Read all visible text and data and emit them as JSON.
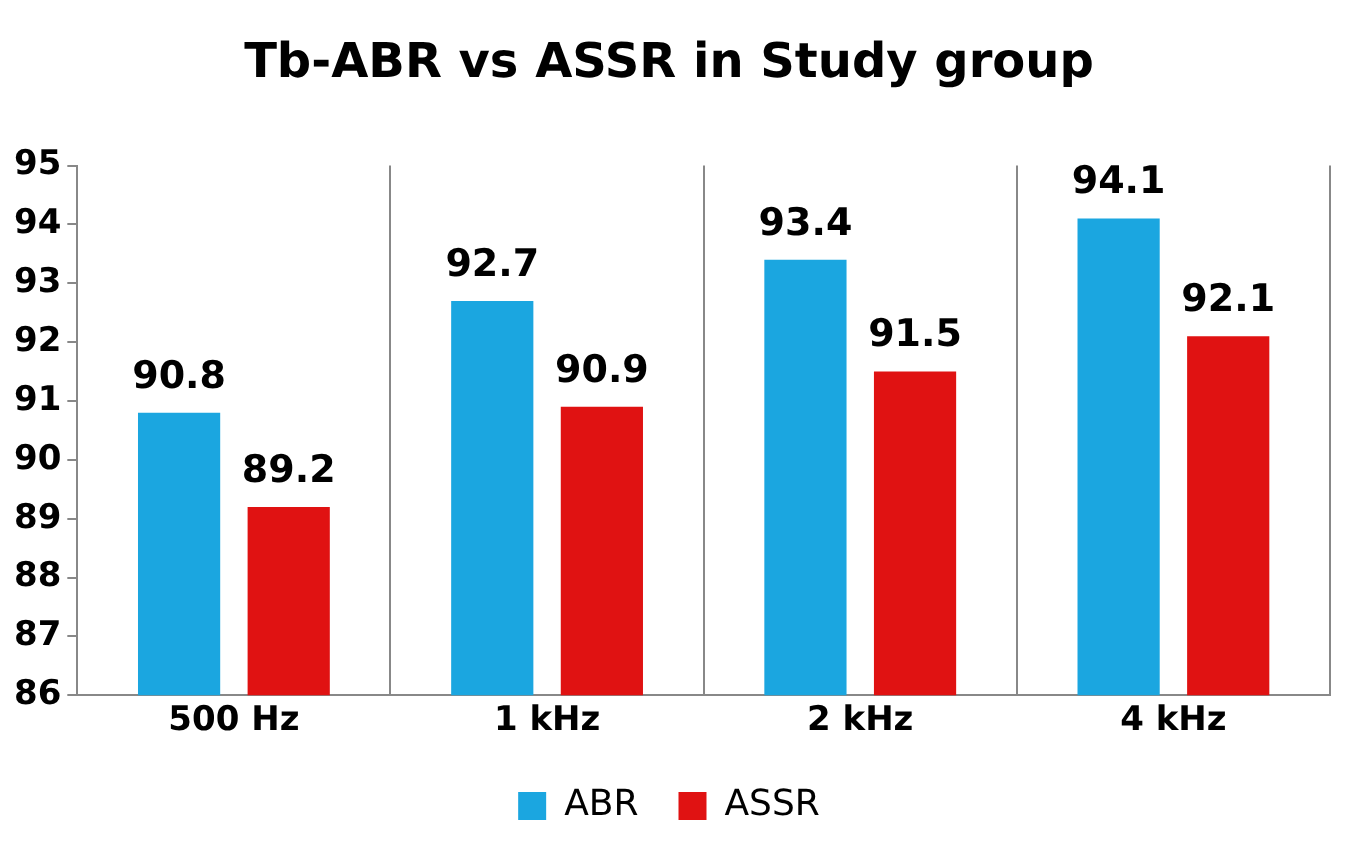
{
  "chart_data": {
    "type": "bar",
    "title": "Tb-ABR vs ASSR in Study group",
    "categories": [
      "500 Hz",
      "1 kHz",
      "2 kHz",
      "4 kHz"
    ],
    "series": [
      {
        "name": "ABR",
        "color": "#1ba6e0",
        "values": [
          90.8,
          92.7,
          93.4,
          94.1
        ]
      },
      {
        "name": "ASSR",
        "color": "#e01212",
        "values": [
          89.2,
          90.9,
          91.5,
          92.1
        ]
      }
    ],
    "ylim": [
      86,
      95
    ],
    "yticks": [
      86,
      87,
      88,
      89,
      90,
      91,
      92,
      93,
      94,
      95
    ],
    "grid": "x",
    "legend": "bottom",
    "data_labels": true
  }
}
